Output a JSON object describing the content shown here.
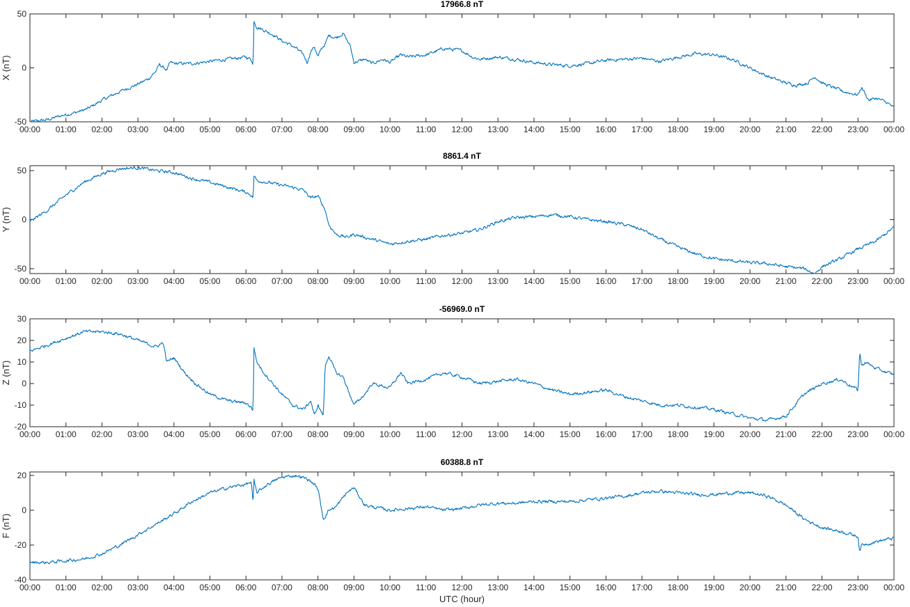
{
  "chart_data": [
    {
      "type": "line",
      "title": "17966.8 nT",
      "ylabel": "X (nT)",
      "xlabel": "",
      "xlim": [
        0,
        24
      ],
      "ylim": [
        -50,
        50
      ],
      "yticks": [
        -50,
        0,
        50
      ],
      "color": "#0072BD",
      "series": [
        {
          "x": [
            0,
            0.5,
            0.9,
            1.2,
            1.6,
            2.0,
            2.5,
            3.0,
            3.3,
            3.5,
            3.6,
            3.8,
            3.9,
            4.0,
            4.5,
            5.0,
            5.5,
            6.0,
            6.15,
            6.2,
            6.22,
            6.3,
            6.5,
            6.8,
            7.0,
            7.2,
            7.4,
            7.6,
            7.7,
            7.8,
            7.9,
            8.0,
            8.1,
            8.2,
            8.3,
            8.5,
            8.7,
            8.9,
            9.0,
            9.3,
            9.5,
            9.8,
            10.0,
            10.3,
            10.5,
            11.0,
            11.5,
            12.0,
            12.3,
            12.5,
            13.0,
            13.5,
            14.0,
            14.5,
            15.0,
            15.5,
            16.0,
            16.5,
            17.0,
            17.5,
            18.0,
            18.5,
            19.0,
            19.5,
            20.0,
            20.5,
            21.0,
            21.3,
            21.6,
            21.8,
            22.0,
            22.3,
            22.6,
            23.0,
            23.1,
            23.3,
            23.5,
            23.8,
            24.0
          ],
          "y": [
            -50,
            -48,
            -44,
            -42,
            -38,
            -30,
            -22,
            -15,
            -10,
            -3,
            3,
            -2,
            5,
            4,
            4,
            6,
            8,
            10,
            8,
            2,
            44,
            38,
            35,
            30,
            25,
            22,
            18,
            12,
            5,
            15,
            20,
            10,
            18,
            22,
            30,
            28,
            32,
            20,
            5,
            8,
            4,
            8,
            5,
            12,
            10,
            12,
            18,
            16,
            10,
            8,
            10,
            8,
            5,
            3,
            2,
            4,
            7,
            8,
            9,
            6,
            10,
            13,
            12,
            8,
            0,
            -8,
            -14,
            -16,
            -14,
            -8,
            -14,
            -18,
            -22,
            -25,
            -18,
            -30,
            -28,
            -32,
            -37
          ]
        }
      ]
    },
    {
      "type": "line",
      "title": "8861.4 nT",
      "ylabel": "Y (nT)",
      "xlabel": "",
      "xlim": [
        0,
        24
      ],
      "ylim": [
        -55,
        55
      ],
      "yticks": [
        -50,
        0,
        50
      ],
      "color": "#0072BD",
      "series": [
        {
          "x": [
            0,
            0.5,
            1.0,
            1.5,
            2.0,
            2.5,
            3.0,
            3.5,
            4.0,
            4.5,
            5.0,
            5.5,
            6.0,
            6.15,
            6.2,
            6.22,
            6.3,
            6.6,
            7.0,
            7.4,
            7.6,
            7.8,
            8.0,
            8.2,
            8.3,
            8.5,
            8.8,
            9.0,
            9.5,
            10.0,
            10.5,
            11.0,
            11.5,
            12.0,
            12.5,
            13.0,
            13.5,
            14.0,
            14.5,
            15.0,
            15.5,
            16.0,
            16.5,
            17.0,
            17.5,
            18.0,
            18.5,
            19.0,
            19.5,
            20.0,
            20.5,
            21.0,
            21.5,
            21.8,
            22.0,
            22.5,
            23.0,
            23.5,
            24.0
          ],
          "y": [
            -2,
            10,
            25,
            38,
            47,
            52,
            53,
            50,
            48,
            42,
            38,
            33,
            28,
            25,
            22,
            45,
            40,
            38,
            35,
            32,
            30,
            22,
            24,
            10,
            -5,
            -15,
            -18,
            -15,
            -20,
            -25,
            -22,
            -20,
            -16,
            -14,
            -10,
            -2,
            2,
            3,
            5,
            3,
            0,
            -2,
            -5,
            -10,
            -20,
            -28,
            -35,
            -40,
            -42,
            -44,
            -45,
            -48,
            -50,
            -55,
            -48,
            -40,
            -30,
            -22,
            -8
          ]
        }
      ]
    },
    {
      "type": "line",
      "title": "-56969.0 nT",
      "ylabel": "Z (nT)",
      "xlabel": "",
      "xlim": [
        0,
        24
      ],
      "ylim": [
        -20,
        30
      ],
      "yticks": [
        -20,
        -10,
        0,
        10,
        20,
        30
      ],
      "color": "#0072BD",
      "series": [
        {
          "x": [
            0,
            0.5,
            1.0,
            1.5,
            2.0,
            2.5,
            3.0,
            3.5,
            3.7,
            3.8,
            4.0,
            4.3,
            4.6,
            5.0,
            5.5,
            6.0,
            6.15,
            6.2,
            6.22,
            6.3,
            6.5,
            7.0,
            7.3,
            7.6,
            7.8,
            7.9,
            8.0,
            8.15,
            8.2,
            8.3,
            8.5,
            8.7,
            9.0,
            9.3,
            9.5,
            10.0,
            10.3,
            10.5,
            11.0,
            11.5,
            12.0,
            12.5,
            13.0,
            13.5,
            14.0,
            14.5,
            15.0,
            15.5,
            16.0,
            16.5,
            17.0,
            17.5,
            18.0,
            18.5,
            19.0,
            19.5,
            20.0,
            20.5,
            21.0,
            21.5,
            22.0,
            22.5,
            23.0,
            23.05,
            23.1,
            23.2,
            23.5,
            24.0
          ],
          "y": [
            15,
            18,
            21,
            24,
            24,
            23,
            20,
            17,
            19,
            10,
            12,
            5,
            0,
            -5,
            -8,
            -9,
            -11,
            -13,
            17,
            10,
            5,
            -5,
            -10,
            -12,
            -8,
            -15,
            -10,
            -15,
            8,
            13,
            5,
            3,
            -10,
            -5,
            0,
            -2,
            5,
            0,
            2,
            5,
            3,
            0,
            1,
            2,
            0,
            -3,
            -5,
            -4,
            -3,
            -6,
            -8,
            -10,
            -10,
            -11,
            -12,
            -14,
            -16,
            -17,
            -15,
            -5,
            0,
            2,
            -3,
            15,
            8,
            10,
            7,
            4
          ]
        }
      ]
    },
    {
      "type": "line",
      "title": "60388.8 nT",
      "ylabel": "F (nT)",
      "xlabel": "UTC (hour)",
      "xlim": [
        0,
        24
      ],
      "ylim": [
        -40,
        22
      ],
      "yticks": [
        -40,
        -20,
        0,
        20
      ],
      "color": "#0072BD",
      "series": [
        {
          "x": [
            0,
            0.5,
            1.0,
            1.5,
            2.0,
            2.5,
            3.0,
            3.5,
            4.0,
            4.5,
            5.0,
            5.5,
            6.0,
            6.15,
            6.2,
            6.22,
            6.3,
            6.6,
            7.0,
            7.4,
            7.7,
            7.9,
            8.0,
            8.15,
            8.3,
            8.5,
            8.8,
            9.0,
            9.3,
            9.5,
            10.0,
            10.5,
            11.0,
            11.5,
            12.0,
            12.5,
            13.0,
            13.5,
            14.0,
            14.5,
            15.0,
            15.5,
            16.0,
            16.5,
            17.0,
            17.5,
            18.0,
            18.5,
            19.0,
            19.5,
            20.0,
            20.5,
            21.0,
            21.5,
            21.8,
            22.0,
            22.5,
            23.0,
            23.05,
            23.1,
            23.5,
            24.0
          ],
          "y": [
            -30,
            -30,
            -29,
            -28,
            -25,
            -20,
            -14,
            -8,
            -2,
            5,
            10,
            13,
            15,
            16,
            3,
            17,
            10,
            15,
            19,
            20,
            18,
            15,
            12,
            -5,
            0,
            2,
            10,
            13,
            3,
            2,
            0,
            1,
            2,
            0,
            1,
            3,
            4,
            4,
            5,
            5,
            5,
            6,
            7,
            8,
            10,
            11,
            10,
            9,
            9,
            10,
            10,
            8,
            3,
            -5,
            -8,
            -10,
            -12,
            -15,
            -24,
            -20,
            -18,
            -16
          ]
        }
      ]
    }
  ],
  "x_tick_labels": [
    "00:00",
    "01:00",
    "02:00",
    "03:00",
    "04:00",
    "05:00",
    "06:00",
    "07:00",
    "08:00",
    "09:00",
    "10:00",
    "11:00",
    "12:00",
    "13:00",
    "14:00",
    "15:00",
    "16:00",
    "17:00",
    "18:00",
    "19:00",
    "20:00",
    "21:00",
    "22:00",
    "23:00",
    "00:00"
  ]
}
